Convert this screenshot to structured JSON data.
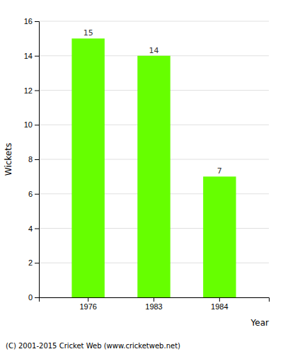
{
  "chart_data": {
    "type": "bar",
    "categories": [
      "1976",
      "1983",
      "1984"
    ],
    "values": [
      15,
      14,
      7
    ],
    "color": "#66ff00",
    "x_label": "Year",
    "y_label": "Wickets",
    "ylim": [
      0,
      16
    ],
    "yticks": [
      0,
      2,
      4,
      6,
      8,
      10,
      12,
      14,
      16
    ],
    "grid": true,
    "data_labels": true,
    "annotations": [
      "(C) 2001-2015 Cricket Web (www.cricketweb.net)"
    ]
  }
}
